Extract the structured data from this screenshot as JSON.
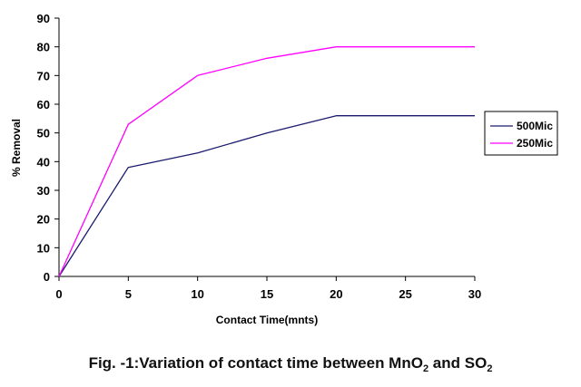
{
  "chart_data": {
    "type": "line",
    "xlabel": "Contact Time(mnts)",
    "ylabel": "% Removal",
    "x": [
      0,
      5,
      10,
      15,
      20,
      30
    ],
    "series": [
      {
        "name": "500Mic",
        "color": "#1a1a6e",
        "values": [
          0,
          38,
          43,
          50,
          56,
          56
        ]
      },
      {
        "name": "250Mic",
        "color": "#ff00ff",
        "values": [
          0,
          53,
          70,
          76,
          80,
          80
        ]
      }
    ],
    "xlim": [
      0,
      30
    ],
    "ylim": [
      0,
      90
    ],
    "xticks": [
      0,
      5,
      10,
      15,
      20,
      25,
      30
    ],
    "yticks": [
      0,
      10,
      20,
      30,
      40,
      50,
      60,
      70,
      80,
      90
    ],
    "grid": false,
    "legend_placement": "right"
  },
  "caption": {
    "prefix": "Fig. -1:",
    "text_before": "Variation of contact time between MnO",
    "sub1": "2",
    "text_middle": " and SO",
    "sub2": "2"
  }
}
